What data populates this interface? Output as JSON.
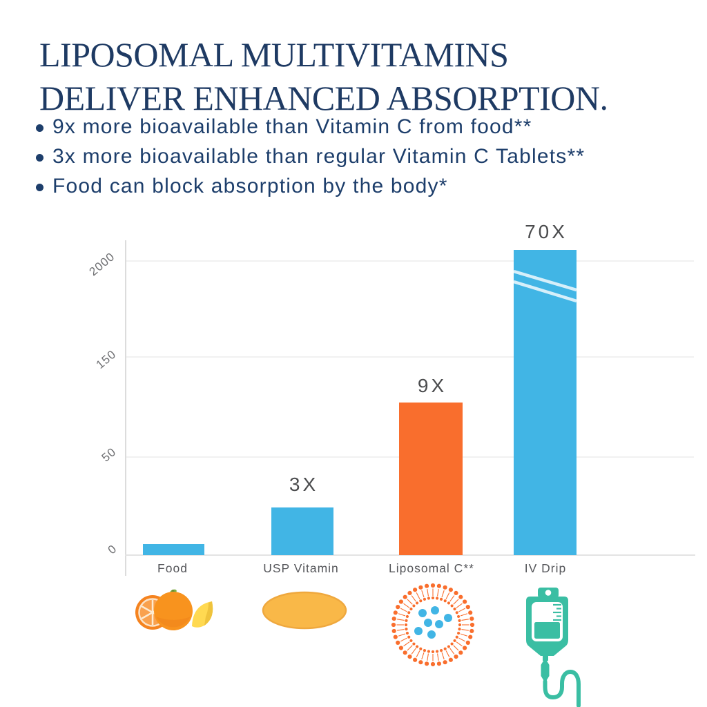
{
  "page": {
    "background": "#ffffff",
    "title": {
      "line1": "LIPOSOMAL MULTIVITAMINS",
      "line2": "DELIVER ENHANCED ABSORPTION.",
      "color": "#1E3A63"
    },
    "bullets": [
      "9x more bioavailable than Vitamin C from food**",
      "3x more bioavailable than regular Vitamin C Tablets**",
      "Food can block absorption by the body*"
    ]
  },
  "chart_data": {
    "type": "bar",
    "title": "",
    "xlabel": "",
    "ylabel": "",
    "categories": [
      "Food",
      "USP Vitamin",
      "Liposomal C**",
      "IV Drip"
    ],
    "bar_labels": [
      "",
      "3X",
      "9X",
      "70X"
    ],
    "relative_absorption_multiplier": [
      1,
      3,
      9,
      70
    ],
    "y_ticks": [
      "0",
      "50",
      "150",
      "2000"
    ],
    "grid": "horizontal light gridlines at 50, 150, 2000",
    "legend": "none",
    "axis_break": "IV Drip bar carries diagonal break marks; its value exceeds the 2000 gridline",
    "bars": [
      {
        "category": "Food",
        "label": "",
        "color": "#41B5E5",
        "height_pct": 3.6,
        "icon": "orange-and-lemon"
      },
      {
        "category": "USP Vitamin",
        "label": "3X",
        "color": "#41B5E5",
        "height_pct": 15.6,
        "icon": "vitamin-tablet"
      },
      {
        "category": "Liposomal C**",
        "label": "9X",
        "color": "#F96E2D",
        "height_pct": 50.0,
        "icon": "liposome"
      },
      {
        "category": "IV Drip",
        "label": "70X",
        "color": "#41B5E5",
        "height_pct": 100.0,
        "icon": "iv-drip-bag"
      }
    ],
    "colors": {
      "bar_blue": "#41B5E5",
      "bar_orange": "#F96E2D",
      "iv_teal": "#3ABEA3",
      "text_navy": "#1D3E6B",
      "tick_gray": "#6e6f72"
    }
  }
}
